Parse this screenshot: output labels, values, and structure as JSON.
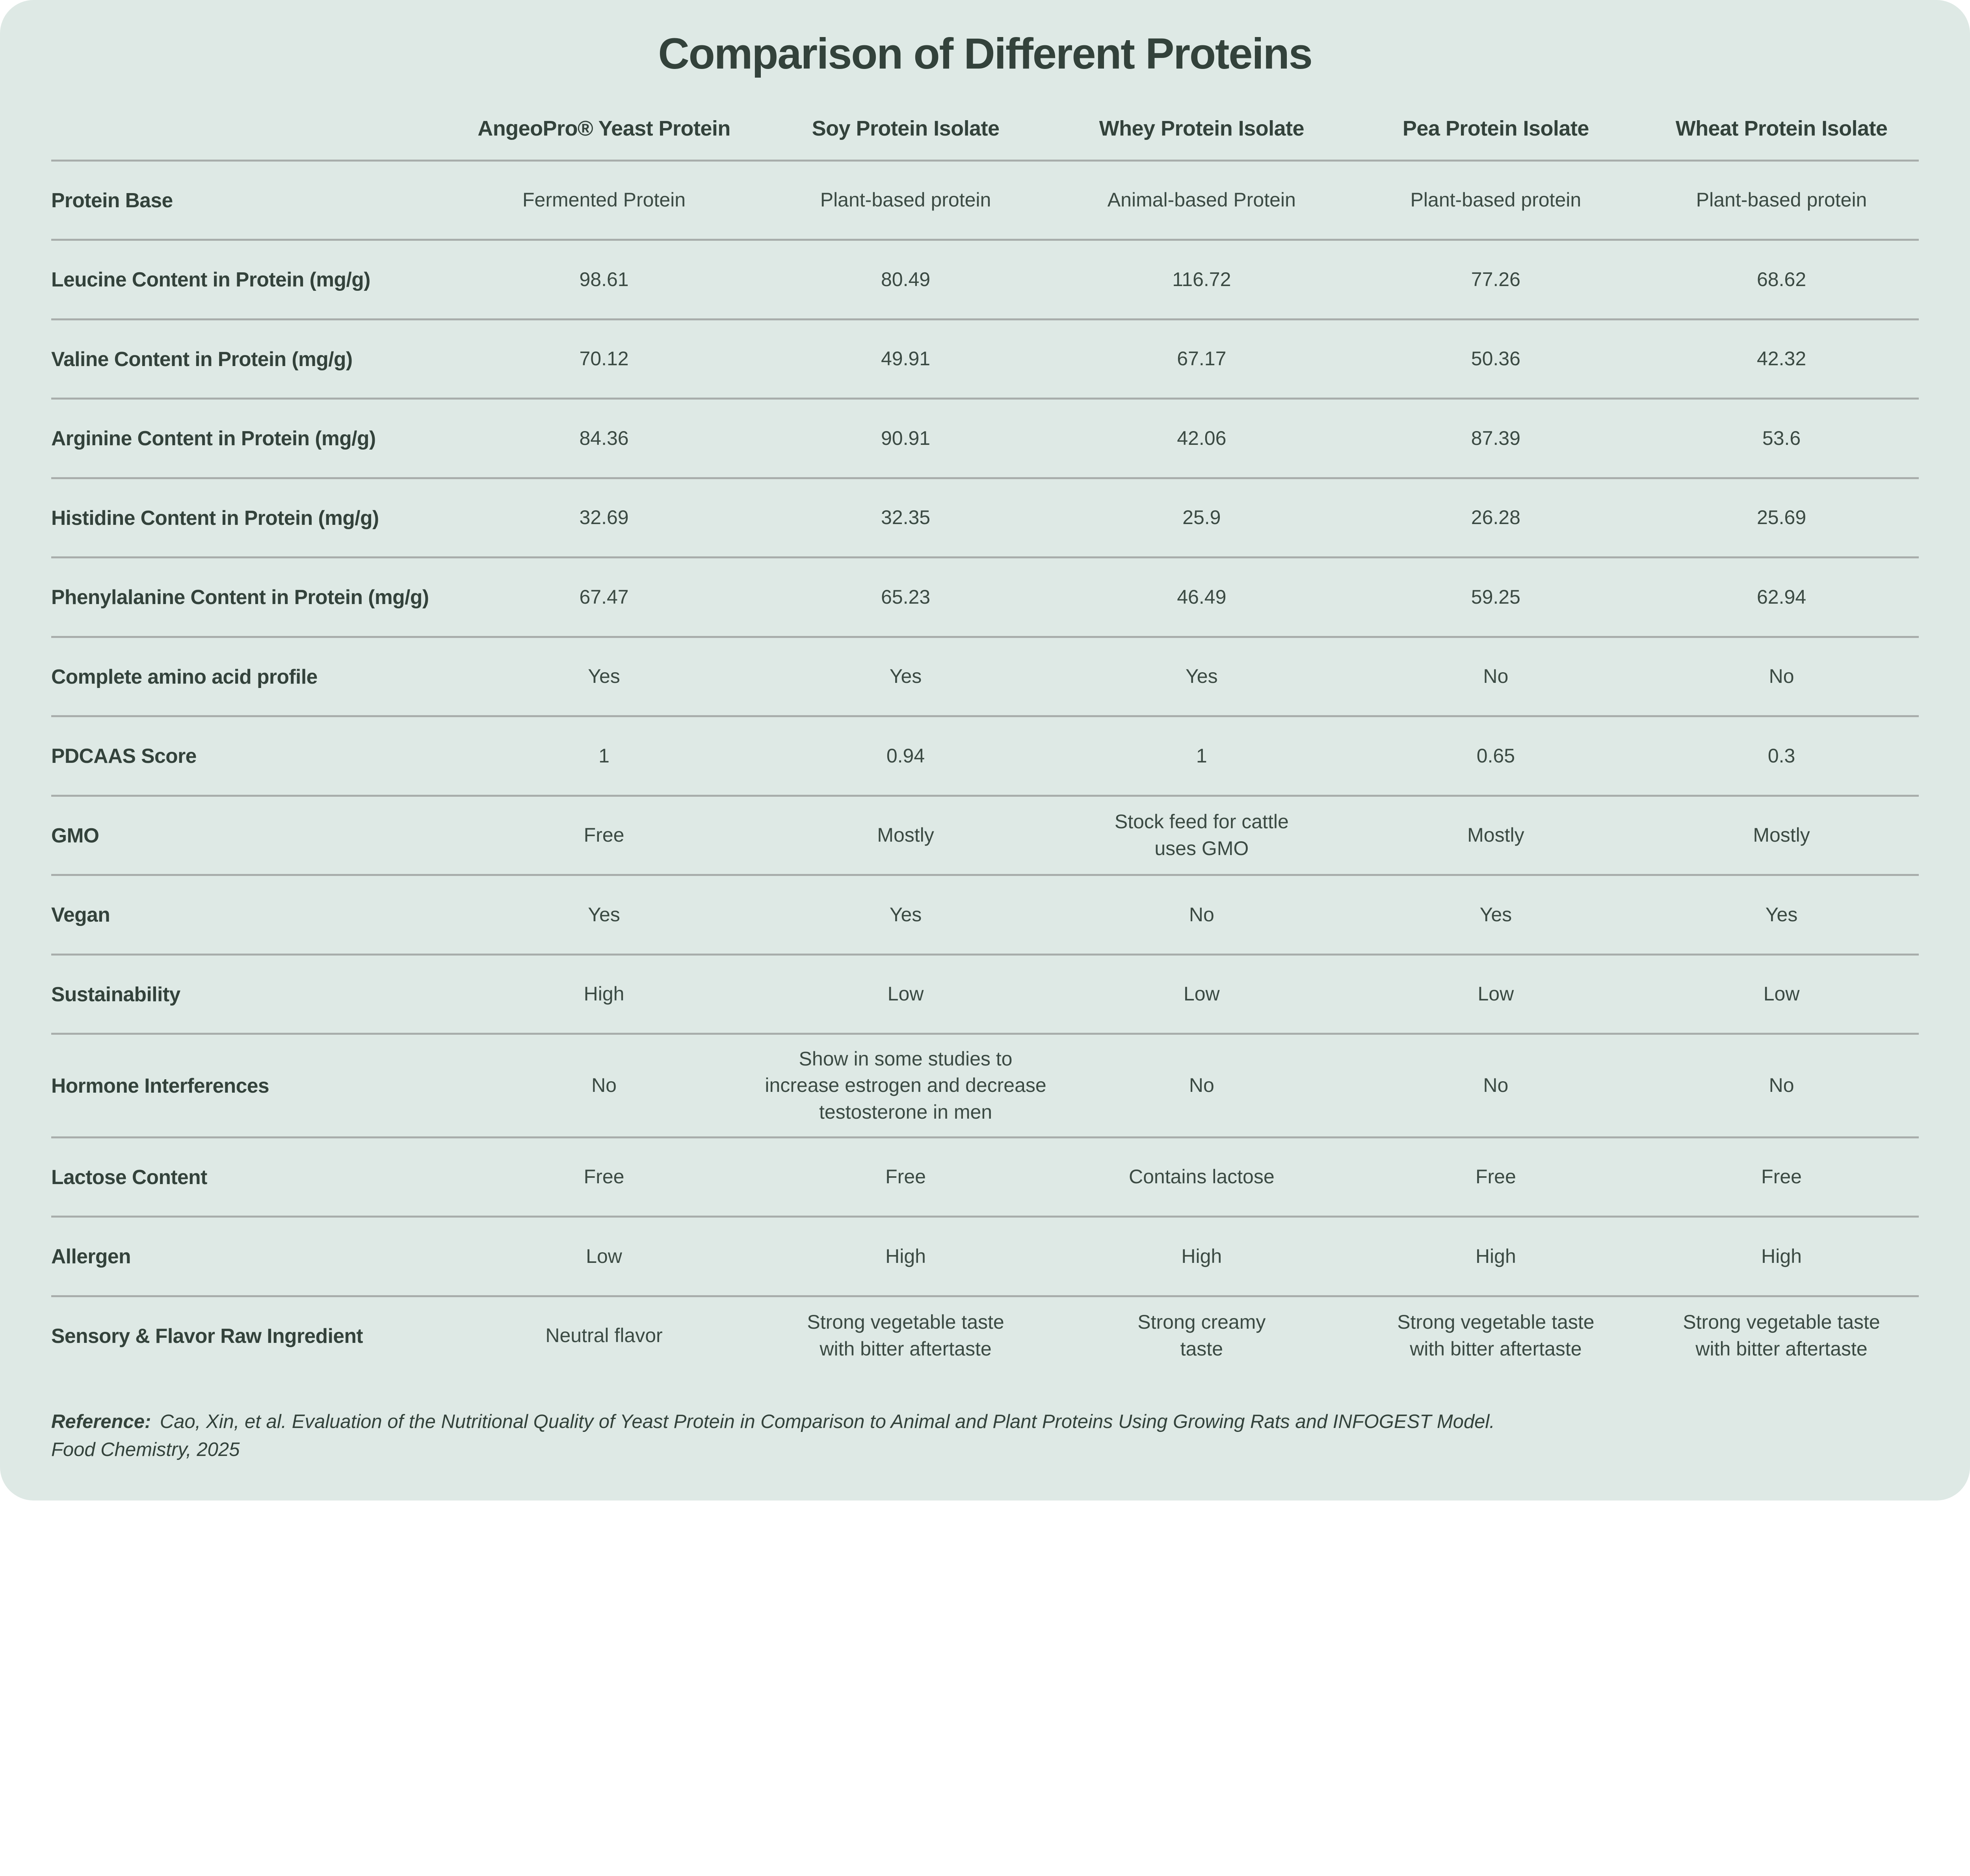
{
  "title": "Comparison of Different Proteins",
  "table": {
    "columns": [
      "AngeoPro® Yeast Protein",
      "Soy Protein Isolate",
      "Whey Protein Isolate",
      "Pea Protein Isolate",
      "Wheat Protein Isolate"
    ],
    "rows": [
      {
        "label": "Protein Base",
        "values": [
          "Fermented Protein",
          "Plant-based protein",
          "Animal-based Protein",
          "Plant-based protein",
          "Plant-based protein"
        ]
      },
      {
        "label": "Leucine Content in Protein (mg/g)",
        "values": [
          "98.61",
          "80.49",
          "116.72",
          "77.26",
          "68.62"
        ]
      },
      {
        "label": "Valine Content in Protein (mg/g)",
        "values": [
          "70.12",
          "49.91",
          "67.17",
          "50.36",
          "42.32"
        ]
      },
      {
        "label": "Arginine Content in Protein (mg/g)",
        "values": [
          "84.36",
          "90.91",
          "42.06",
          "87.39",
          "53.6"
        ]
      },
      {
        "label": "Histidine Content in Protein (mg/g)",
        "values": [
          "32.69",
          "32.35",
          "25.9",
          "26.28",
          "25.69"
        ]
      },
      {
        "label": "Phenylalanine Content in Protein (mg/g)",
        "values": [
          "67.47",
          "65.23",
          "46.49",
          "59.25",
          "62.94"
        ]
      },
      {
        "label": "Complete amino acid profile",
        "values": [
          "Yes",
          "Yes",
          "Yes",
          "No",
          "No"
        ]
      },
      {
        "label": "PDCAAS Score",
        "values": [
          "1",
          "0.94",
          "1",
          "0.65",
          "0.3"
        ]
      },
      {
        "label": "GMO",
        "values": [
          "Free",
          "Mostly",
          "Stock feed for cattle\nuses GMO",
          "Mostly",
          "Mostly"
        ]
      },
      {
        "label": "Vegan",
        "values": [
          "Yes",
          "Yes",
          "No",
          "Yes",
          "Yes"
        ]
      },
      {
        "label": "Sustainability",
        "values": [
          "High",
          "Low",
          "Low",
          "Low",
          "Low"
        ]
      },
      {
        "label": "Hormone Interferences",
        "values": [
          "No",
          "Show in some studies to\nincrease estrogen and decrease\ntestosterone in men",
          "No",
          "No",
          "No"
        ]
      },
      {
        "label": "Lactose Content",
        "values": [
          "Free",
          "Free",
          "Contains lactose",
          "Free",
          "Free"
        ]
      },
      {
        "label": "Allergen",
        "values": [
          "Low",
          "High",
          "High",
          "High",
          "High"
        ]
      },
      {
        "label": "Sensory & Flavor Raw Ingredient",
        "values": [
          "Neutral flavor",
          "Strong vegetable taste\nwith bitter aftertaste",
          "Strong creamy\ntaste",
          "Strong vegetable taste\nwith bitter aftertaste",
          "Strong vegetable taste\nwith bitter aftertaste"
        ]
      }
    ]
  },
  "reference": {
    "label": "Reference",
    "colon": ":",
    "text": "Cao, Xin, et al. Evaluation of the Nutritional Quality of Yeast Protein in Comparison to Animal and Plant Proteins Using Growing Rats and INFOGEST Model.\nFood Chemistry, 2025"
  },
  "colors": {
    "page_bg": "#ffffff",
    "card_bg": "#dee9e5",
    "text": "#33423b",
    "value_text": "#3b4a43",
    "line": "#a8adab"
  }
}
